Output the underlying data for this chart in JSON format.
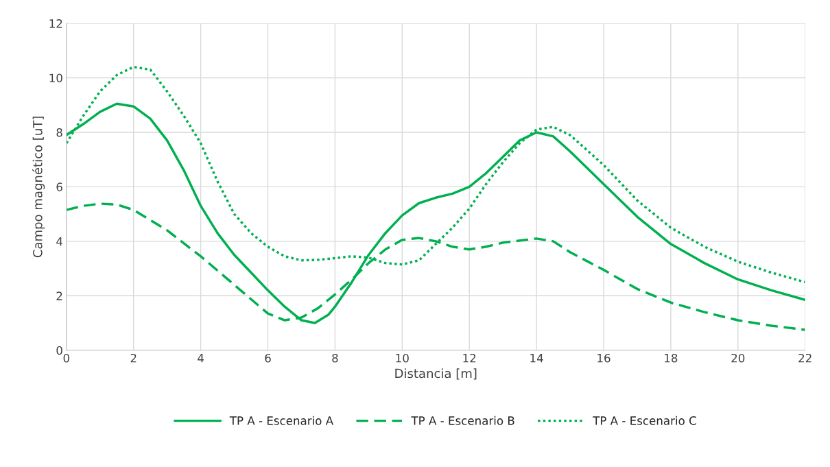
{
  "chart_data": {
    "type": "line",
    "xlabel": "Distancia [m]",
    "ylabel": "Campo magnético [uT]",
    "xlim": [
      0,
      22
    ],
    "xticks": [
      0,
      2,
      4,
      6,
      8,
      10,
      12,
      14,
      16,
      18,
      20,
      22
    ],
    "ylim": [
      0,
      12
    ],
    "yticks": [
      0,
      2,
      4,
      6,
      8,
      10,
      12
    ],
    "grid": true,
    "legend": "bottom",
    "marker": "none",
    "series": [
      {
        "name": "TP A - Escenario A",
        "color": "#00b050",
        "line_style": "solid",
        "x": [
          0,
          0.5,
          1,
          1.5,
          2,
          2.5,
          3,
          3.5,
          4,
          4.5,
          5,
          5.5,
          6,
          6.5,
          7,
          7.4,
          7.8,
          8,
          8.5,
          9,
          9.5,
          10,
          10.5,
          11,
          11.5,
          12,
          12.5,
          13,
          13.5,
          14,
          14.5,
          15,
          16,
          17,
          18,
          19,
          20,
          21,
          22
        ],
        "values": [
          7.9,
          8.3,
          8.75,
          9.05,
          8.95,
          8.5,
          7.7,
          6.6,
          5.3,
          4.3,
          3.5,
          2.85,
          2.2,
          1.6,
          1.1,
          1.0,
          1.3,
          1.6,
          2.5,
          3.5,
          4.3,
          4.95,
          5.4,
          5.6,
          5.75,
          6.0,
          6.5,
          7.1,
          7.7,
          8.0,
          7.85,
          7.3,
          6.1,
          4.9,
          3.9,
          3.2,
          2.6,
          2.2,
          1.85
        ]
      },
      {
        "name": "TP A - Escenario B",
        "color": "#00b050",
        "line_style": "dashed",
        "x": [
          0,
          0.5,
          1,
          1.5,
          2,
          3,
          4,
          5,
          6,
          6.5,
          7,
          7.5,
          8,
          8.5,
          9,
          9.5,
          10,
          10.5,
          11,
          11.5,
          12,
          12.5,
          13,
          14,
          14.5,
          15,
          16,
          17,
          18,
          19,
          20,
          21,
          22
        ],
        "values": [
          5.15,
          5.3,
          5.38,
          5.35,
          5.15,
          4.4,
          3.45,
          2.4,
          1.35,
          1.1,
          1.2,
          1.55,
          2.05,
          2.6,
          3.2,
          3.7,
          4.05,
          4.12,
          4.0,
          3.8,
          3.7,
          3.8,
          3.95,
          4.1,
          4.0,
          3.6,
          2.95,
          2.25,
          1.75,
          1.4,
          1.1,
          0.9,
          0.75
        ]
      },
      {
        "name": "TP A - Escenario C",
        "color": "#00b050",
        "line_style": "dotted",
        "x": [
          0,
          0.5,
          1,
          1.5,
          2,
          2.5,
          3,
          3.5,
          4,
          4.5,
          5,
          5.5,
          6,
          6.5,
          7,
          7.5,
          8,
          8.5,
          9,
          9.5,
          10,
          10.5,
          11,
          11.5,
          12,
          12.5,
          13,
          13.5,
          14,
          14.5,
          15,
          16,
          17,
          18,
          19,
          20,
          21,
          22
        ],
        "values": [
          7.6,
          8.6,
          9.5,
          10.1,
          10.4,
          10.3,
          9.5,
          8.6,
          7.6,
          6.2,
          5.0,
          4.3,
          3.8,
          3.45,
          3.3,
          3.32,
          3.38,
          3.45,
          3.4,
          3.2,
          3.15,
          3.3,
          3.9,
          4.5,
          5.2,
          6.1,
          6.9,
          7.6,
          8.1,
          8.2,
          7.9,
          6.8,
          5.5,
          4.5,
          3.8,
          3.25,
          2.85,
          2.5
        ]
      }
    ]
  }
}
